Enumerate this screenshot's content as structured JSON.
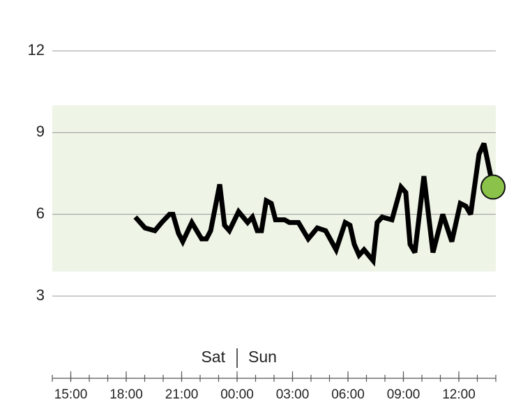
{
  "chart_data": {
    "type": "line",
    "x": [
      18.49,
      19.02,
      19.55,
      19.92,
      20.34,
      20.53,
      20.83,
      21.06,
      21.55,
      22.08,
      22.34,
      22.57,
      23.06,
      23.32,
      23.58,
      24.08,
      24.57,
      24.83,
      25.09,
      25.32,
      25.58,
      25.85,
      26.08,
      26.57,
      26.83,
      27.32,
      27.85,
      28.34,
      28.79,
      29.36,
      29.85,
      30.11,
      30.34,
      30.6,
      30.87,
      31.36,
      31.58,
      31.85,
      32.38,
      32.87,
      33.13,
      33.36,
      33.62,
      34.11,
      34.6,
      35.13,
      35.62,
      36.08,
      36.38,
      36.64,
      37.09,
      37.36,
      37.85
    ],
    "series": [
      {
        "color": "#000000",
        "current_marker_color": "#8bc34a",
        "values": [
          5.9,
          5.5,
          5.4,
          5.7,
          6.0,
          6.0,
          5.3,
          5.0,
          5.7,
          5.1,
          5.1,
          5.4,
          7.1,
          5.6,
          5.4,
          6.1,
          5.7,
          5.9,
          5.4,
          5.4,
          6.5,
          6.4,
          5.8,
          5.8,
          5.7,
          5.7,
          5.1,
          5.5,
          5.4,
          4.7,
          5.7,
          5.6,
          4.9,
          4.5,
          4.7,
          4.3,
          5.7,
          5.9,
          5.8,
          7.0,
          6.8,
          4.9,
          4.6,
          7.4,
          4.6,
          6.0,
          5.0,
          6.4,
          6.3,
          6.0,
          8.2,
          8.6,
          7.0
        ]
      }
    ],
    "target_range": [
      3.9,
      10
    ],
    "target_color": "#eef4e6",
    "ylim": [
      3,
      12
    ],
    "yticks": [
      3,
      6,
      9,
      12
    ],
    "grid": true,
    "xlim": [
      14,
      38
    ],
    "xminor_step": 1,
    "xticks": [
      {
        "value": 15,
        "label": "15:00"
      },
      {
        "value": 18,
        "label": "18:00"
      },
      {
        "value": 21,
        "label": "21:00"
      },
      {
        "value": 24,
        "label": "00:00"
      },
      {
        "value": 27,
        "label": "03:00"
      },
      {
        "value": 30,
        "label": "06:00"
      },
      {
        "value": 33,
        "label": "09:00"
      },
      {
        "value": 36,
        "label": "12:00"
      }
    ],
    "day_labels": [
      "Sat",
      "Sun"
    ]
  }
}
